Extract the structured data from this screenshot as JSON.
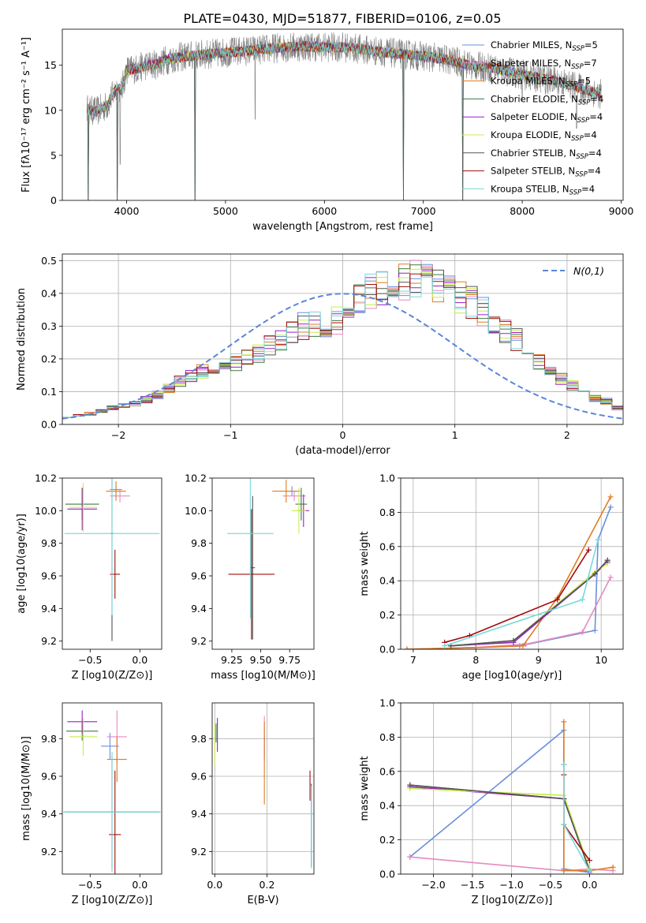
{
  "figure_title": "PLATE=0430, MJD=51877, FIBERID=0106, z=0.05",
  "colors": {
    "chabrier_miles": "#6a8fdc",
    "salpeter_miles": "#e68ac0",
    "kroupa_miles": "#e07b1f",
    "chabrier_elodie": "#3e7a3e",
    "salpeter_elodie": "#9a1fc7",
    "kroupa_elodie": "#c8ec4a",
    "chabrier_stelib": "#555555",
    "salpeter_stelib": "#a30d0d",
    "kroupa_stelib": "#78d8dc",
    "data": "#7f7f7f"
  },
  "chart_data": [
    {
      "id": "spectrum",
      "type": "line",
      "title": "PLATE=0430, MJD=51877, FIBERID=0106, z=0.05",
      "xlabel": "wavelength [Angstrom, rest frame]",
      "ylabel": "Flux [fλ10⁻¹⁷ erg cm⁻² s⁻¹ A⁻¹]",
      "xlim": [
        3350,
        9020
      ],
      "ylim": [
        0,
        19
      ],
      "xticks": [
        4000,
        5000,
        6000,
        7000,
        8000,
        9000
      ],
      "yticks": [
        0,
        5,
        10,
        15
      ],
      "grid": false,
      "legend_position": "right",
      "spectrum_range": [
        3600,
        8800
      ],
      "continuum_x": [
        3600,
        3620,
        3700,
        3800,
        3900,
        3950,
        4000,
        4100,
        4200,
        4300,
        4400,
        4600,
        4800,
        5000,
        5200,
        5500,
        5800,
        6000,
        6200,
        6500,
        6800,
        7000,
        7200,
        7400,
        7500,
        7700,
        7900,
        8200,
        8400,
        8600,
        8800
      ],
      "continuum_y": [
        10.2,
        10.0,
        9.9,
        10.5,
        12.5,
        12.2,
        14.5,
        14.6,
        15.0,
        15.1,
        15.6,
        16.0,
        16.2,
        16.4,
        16.6,
        16.9,
        17.1,
        17.0,
        17.0,
        16.6,
        16.2,
        16.0,
        15.7,
        15.2,
        14.9,
        14.7,
        14.2,
        13.5,
        13.1,
        12.4,
        11.8
      ],
      "dips": [
        {
          "x": 3610,
          "y": 0
        },
        {
          "x": 3905,
          "y": 0
        },
        {
          "x": 3935,
          "y": 4
        },
        {
          "x": 4690,
          "y": 0
        },
        {
          "x": 5300,
          "y": 9
        },
        {
          "x": 6800,
          "y": 0
        },
        {
          "x": 7400,
          "y": 0
        },
        {
          "x": 8000,
          "y": 11
        },
        {
          "x": 8550,
          "y": 8
        }
      ],
      "series": [
        {
          "name": "Chabrier MILES, N",
          "sub": "SSP",
          "eq": "=5",
          "color_key": "chabrier_miles"
        },
        {
          "name": "Salpeter MILES, N",
          "sub": "SSP",
          "eq": "=7",
          "color_key": "salpeter_miles"
        },
        {
          "name": "Kroupa MILES, N",
          "sub": "SSP",
          "eq": "=5",
          "color_key": "kroupa_miles"
        },
        {
          "name": "Chabrier ELODIE, N",
          "sub": "SSP",
          "eq": "=4",
          "color_key": "chabrier_elodie"
        },
        {
          "name": "Salpeter ELODIE, N",
          "sub": "SSP",
          "eq": "=4",
          "color_key": "salpeter_elodie"
        },
        {
          "name": "Kroupa ELODIE, N",
          "sub": "SSP",
          "eq": "=4",
          "color_key": "kroupa_elodie"
        },
        {
          "name": "Chabrier STELIB, N",
          "sub": "SSP",
          "eq": "=4",
          "color_key": "chabrier_stelib"
        },
        {
          "name": "Salpeter STELIB, N",
          "sub": "SSP",
          "eq": "=4",
          "color_key": "salpeter_stelib"
        },
        {
          "name": "Kroupa STELIB, N",
          "sub": "SSP",
          "eq": "=4",
          "color_key": "kroupa_stelib"
        }
      ]
    },
    {
      "id": "residuals",
      "type": "line",
      "xlabel": "(data-model)/error",
      "ylabel": "Normed distribution",
      "xlim": [
        -2.5,
        2.5
      ],
      "ylim": [
        0,
        0.52
      ],
      "xticks": [
        -2,
        -1,
        0,
        1,
        2
      ],
      "yticks": [
        0.0,
        0.1,
        0.2,
        0.3,
        0.4,
        0.5
      ],
      "grid": true,
      "legend_position": "top-right",
      "legend": "N(0,1)",
      "bin_width": 0.1,
      "base_hist": [
        0.025,
        0.03,
        0.033,
        0.04,
        0.05,
        0.06,
        0.065,
        0.075,
        0.09,
        0.11,
        0.13,
        0.15,
        0.16,
        0.17,
        0.18,
        0.19,
        0.2,
        0.215,
        0.24,
        0.26,
        0.28,
        0.3,
        0.31,
        0.3,
        0.32,
        0.36,
        0.39,
        0.41,
        0.42,
        0.43,
        0.44,
        0.45,
        0.43,
        0.42,
        0.41,
        0.39,
        0.37,
        0.35,
        0.32,
        0.28,
        0.26,
        0.23,
        0.19,
        0.17,
        0.14,
        0.12,
        0.1,
        0.08,
        0.07,
        0.05
      ],
      "gaussian_sigma": 1
    },
    {
      "id": "age_vs_Z",
      "type": "scatter",
      "xlabel": "Z [log10(Z/Z⊙)]",
      "ylabel": "age  [log10(age/yr)]",
      "xlim": [
        -0.78,
        0.22
      ],
      "ylim": [
        9.15,
        10.2
      ],
      "xticks": [
        -0.5,
        0.0
      ],
      "yticks": [
        9.2,
        9.4,
        9.6,
        9.8,
        10.0,
        10.2
      ],
      "grid": false,
      "points": [
        {
          "color_key": "chabrier_miles",
          "x": -0.24,
          "y": 10.13,
          "xerr": 0.06,
          "yerr": 0.03
        },
        {
          "color_key": "salpeter_miles",
          "x": -0.2,
          "y": 10.09,
          "xerr": 0.1,
          "yerr": 0.04
        },
        {
          "color_key": "kroupa_miles",
          "x": -0.24,
          "y": 10.12,
          "xerr": 0.1,
          "yerr": 0.06
        },
        {
          "color_key": "chabrier_elodie",
          "x": -0.58,
          "y": 10.04,
          "xerr": 0.17,
          "yerr": 0.1
        },
        {
          "color_key": "salpeter_elodie",
          "x": -0.58,
          "y": 10.01,
          "xerr": 0.15,
          "yerr": 0.13
        },
        {
          "color_key": "kroupa_elodie",
          "x": -0.57,
          "y": 10.02,
          "xerr": 0.14,
          "yerr": 0.15
        },
        {
          "color_key": "chabrier_stelib",
          "x": -0.28,
          "y": 9.86,
          "xerr": 0.02,
          "yerr": 0.66
        },
        {
          "color_key": "salpeter_stelib",
          "x": -0.25,
          "y": 9.61,
          "xerr": 0.05,
          "yerr": 0.15
        },
        {
          "color_key": "kroupa_stelib",
          "x": -0.28,
          "y": 9.86,
          "xerr": 0.48,
          "yerr": 0.5
        }
      ]
    },
    {
      "id": "age_vs_mass",
      "type": "scatter",
      "xlabel": "mass [log10(M/M⊙)]",
      "ylabel": "",
      "xlim": [
        9.08,
        9.96
      ],
      "ylim": [
        9.15,
        10.2
      ],
      "xticks": [
        9.25,
        9.5,
        9.75
      ],
      "yticks": [
        9.2,
        9.4,
        9.6,
        9.8,
        10.0,
        10.2
      ],
      "grid": false,
      "points": [
        {
          "color_key": "chabrier_miles",
          "x": 9.77,
          "y": 10.12,
          "xerr": 0.06,
          "yerr": 0.03
        },
        {
          "color_key": "salpeter_miles",
          "x": 9.79,
          "y": 10.09,
          "xerr": 0.1,
          "yerr": 0.03
        },
        {
          "color_key": "kroupa_miles",
          "x": 9.72,
          "y": 10.12,
          "xerr": 0.12,
          "yerr": 0.07
        },
        {
          "color_key": "chabrier_elodie",
          "x": 9.85,
          "y": 10.04,
          "xerr": 0.05,
          "yerr": 0.1
        },
        {
          "color_key": "salpeter_elodie",
          "x": 9.87,
          "y": 10.0,
          "xerr": 0.05,
          "yerr": 0.1
        },
        {
          "color_key": "kroupa_elodie",
          "x": 9.83,
          "y": 10.0,
          "xerr": 0.06,
          "yerr": 0.14
        },
        {
          "color_key": "chabrier_stelib",
          "x": 9.43,
          "y": 9.65,
          "xerr": 0.02,
          "yerr": 0.44
        },
        {
          "color_key": "salpeter_stelib",
          "x": 9.42,
          "y": 9.61,
          "xerr": 0.2,
          "yerr": 0.4
        },
        {
          "color_key": "kroupa_stelib",
          "x": 9.41,
          "y": 9.86,
          "xerr": 0.2,
          "yerr": 0.52
        }
      ]
    },
    {
      "id": "massweight_vs_age",
      "type": "line",
      "xlabel": "age  [log10(age/yr)]",
      "ylabel": "mass weight",
      "xlim": [
        6.8,
        10.35
      ],
      "ylim": [
        0,
        1.0
      ],
      "xticks": [
        7,
        8,
        9,
        10
      ],
      "yticks": [
        0.0,
        0.2,
        0.4,
        0.6,
        0.8,
        1.0
      ],
      "grid": true,
      "series": [
        {
          "color_key": "chabrier_miles",
          "x": [
            6.9,
            8.0,
            8.7,
            9.9,
            9.95,
            10.15
          ],
          "y": [
            0.0,
            0.01,
            0.02,
            0.11,
            0.64,
            0.83
          ]
        },
        {
          "color_key": "salpeter_miles",
          "x": [
            6.9,
            8.0,
            8.8,
            9.7,
            10.15
          ],
          "y": [
            0.0,
            0.01,
            0.03,
            0.1,
            0.42
          ]
        },
        {
          "color_key": "kroupa_miles",
          "x": [
            6.9,
            8.0,
            8.75,
            9.3,
            10.15
          ],
          "y": [
            0.0,
            0.01,
            0.02,
            0.3,
            0.89
          ]
        },
        {
          "color_key": "chabrier_elodie",
          "x": [
            7.6,
            8.6,
            9.9,
            10.1
          ],
          "y": [
            0.02,
            0.05,
            0.44,
            0.52
          ]
        },
        {
          "color_key": "salpeter_elodie",
          "x": [
            7.6,
            8.6,
            9.9,
            10.1
          ],
          "y": [
            0.02,
            0.04,
            0.44,
            0.51
          ]
        },
        {
          "color_key": "kroupa_elodie",
          "x": [
            7.6,
            8.6,
            9.9,
            10.1
          ],
          "y": [
            0.02,
            0.05,
            0.45,
            0.5
          ]
        },
        {
          "color_key": "chabrier_stelib",
          "x": [
            7.6,
            8.6,
            9.9,
            10.1
          ],
          "y": [
            0.02,
            0.05,
            0.44,
            0.52
          ]
        },
        {
          "color_key": "salpeter_stelib",
          "x": [
            7.5,
            7.9,
            9.3,
            9.8
          ],
          "y": [
            0.04,
            0.08,
            0.29,
            0.58
          ]
        },
        {
          "color_key": "kroupa_stelib",
          "x": [
            7.5,
            9.7,
            9.95
          ],
          "y": [
            0.02,
            0.29,
            0.64
          ]
        }
      ]
    },
    {
      "id": "mass_vs_Z",
      "type": "scatter",
      "xlabel": "Z [log10(Z/Z⊙)]",
      "ylabel": "mass [log10(M/M⊙)]",
      "xlim": [
        -0.78,
        0.22
      ],
      "ylim": [
        9.08,
        9.99
      ],
      "xticks": [
        -0.5,
        0.0
      ],
      "yticks": [
        9.2,
        9.4,
        9.6,
        9.8
      ],
      "grid": false,
      "points": [
        {
          "color_key": "chabrier_miles",
          "x": -0.3,
          "y": 9.76,
          "xerr": 0.09,
          "yerr": 0.07
        },
        {
          "color_key": "salpeter_miles",
          "x": -0.23,
          "y": 9.81,
          "xerr": 0.1,
          "yerr": 0.14
        },
        {
          "color_key": "kroupa_miles",
          "x": -0.23,
          "y": 9.69,
          "xerr": 0.1,
          "yerr": 0.12
        },
        {
          "color_key": "chabrier_elodie",
          "x": -0.58,
          "y": 9.84,
          "xerr": 0.16,
          "yerr": 0.05
        },
        {
          "color_key": "salpeter_elodie",
          "x": -0.58,
          "y": 9.89,
          "xerr": 0.15,
          "yerr": 0.06
        },
        {
          "color_key": "kroupa_elodie",
          "x": -0.57,
          "y": 9.81,
          "xerr": 0.14,
          "yerr": 0.1
        },
        {
          "color_key": "chabrier_stelib",
          "x": -0.28,
          "y": 9.41,
          "xerr": 0.48,
          "yerr": 0.3
        },
        {
          "color_key": "salpeter_stelib",
          "x": -0.25,
          "y": 9.29,
          "xerr": 0.06,
          "yerr": 0.34
        },
        {
          "color_key": "kroupa_stelib",
          "x": -0.28,
          "y": 9.41,
          "xerr": 0.49,
          "yerr": 0.32
        }
      ]
    },
    {
      "id": "mass_vs_EBV",
      "type": "scatter",
      "xlabel": "E(B-V)",
      "ylabel": "",
      "xlim": [
        -0.01,
        0.38
      ],
      "ylim": [
        9.08,
        9.99
      ],
      "xticks": [
        0.0,
        0.2
      ],
      "yticks": [
        9.2,
        9.4,
        9.6,
        9.8
      ],
      "grid": true,
      "points": [
        {
          "color_key": "chabrier_miles",
          "x": 0.19,
          "y": 9.76,
          "xerr": 0.0,
          "yerr": 0.06
        },
        {
          "color_key": "salpeter_miles",
          "x": 0.19,
          "y": 9.8,
          "xerr": 0.0,
          "yerr": 0.12
        },
        {
          "color_key": "kroupa_miles",
          "x": 0.19,
          "y": 9.67,
          "xerr": 0.0,
          "yerr": 0.22
        },
        {
          "color_key": "chabrier_elodie",
          "x": 0.005,
          "y": 9.83,
          "xerr": 0.0,
          "yerr": 0.05
        },
        {
          "color_key": "salpeter_elodie",
          "x": 0.01,
          "y": 9.82,
          "xerr": 0.0,
          "yerr": 0.09
        },
        {
          "color_key": "kroupa_elodie",
          "x": 0.0,
          "y": 9.77,
          "xerr": 0.0,
          "yerr": 0.11
        },
        {
          "color_key": "chabrier_stelib",
          "x": 0.37,
          "y": 9.34,
          "xerr": 0.0,
          "yerr": 0.22
        },
        {
          "color_key": "salpeter_stelib",
          "x": 0.365,
          "y": 9.55,
          "xerr": 0.0,
          "yerr": 0.08
        },
        {
          "color_key": "kroupa_stelib",
          "x": 0.37,
          "y": 9.33,
          "xerr": 0.0,
          "yerr": 0.22
        }
      ]
    },
    {
      "id": "massweight_vs_Z",
      "type": "line",
      "xlabel": "Z [log10(Z/Z⊙)]",
      "ylabel": "mass weight",
      "xlim": [
        -2.42,
        0.43
      ],
      "ylim": [
        0,
        1.0
      ],
      "xticks": [
        -2.0,
        -1.5,
        -1.0,
        -0.5,
        0.0
      ],
      "yticks": [
        0.0,
        0.2,
        0.4,
        0.6,
        0.8,
        1.0
      ],
      "grid": true,
      "series": [
        {
          "color_key": "chabrier_miles",
          "x": [
            -2.3,
            -0.33,
            -0.33,
            -0.33,
            0.0
          ],
          "y": [
            0.1,
            0.84,
            0.64,
            0.03,
            0.01
          ]
        },
        {
          "color_key": "salpeter_miles",
          "x": [
            -2.3,
            -0.33,
            0.0,
            0.3
          ],
          "y": [
            0.1,
            0.02,
            0.03,
            0.02
          ]
        },
        {
          "color_key": "kroupa_miles",
          "x": [
            -0.33,
            -0.33,
            0.0,
            0.3
          ],
          "y": [
            0.89,
            0.02,
            0.02,
            0.04
          ]
        },
        {
          "color_key": "chabrier_elodie",
          "x": [
            -2.3,
            -0.33,
            0.0
          ],
          "y": [
            0.52,
            0.44,
            0.02
          ]
        },
        {
          "color_key": "salpeter_elodie",
          "x": [
            -2.3,
            -0.33,
            0.0
          ],
          "y": [
            0.51,
            0.44,
            0.02
          ]
        },
        {
          "color_key": "kroupa_elodie",
          "x": [
            -2.3,
            -0.33,
            0.0
          ],
          "y": [
            0.5,
            0.46,
            0.03
          ]
        },
        {
          "color_key": "chabrier_stelib",
          "x": [
            -2.3,
            -0.33,
            0.0
          ],
          "y": [
            0.52,
            0.44,
            0.02
          ]
        },
        {
          "color_key": "salpeter_stelib",
          "x": [
            -0.33,
            -0.33,
            0.0
          ],
          "y": [
            0.58,
            0.29,
            0.08
          ]
        },
        {
          "color_key": "kroupa_stelib",
          "x": [
            -0.33,
            -0.33,
            0.0
          ],
          "y": [
            0.64,
            0.29,
            0.02
          ]
        }
      ]
    }
  ]
}
